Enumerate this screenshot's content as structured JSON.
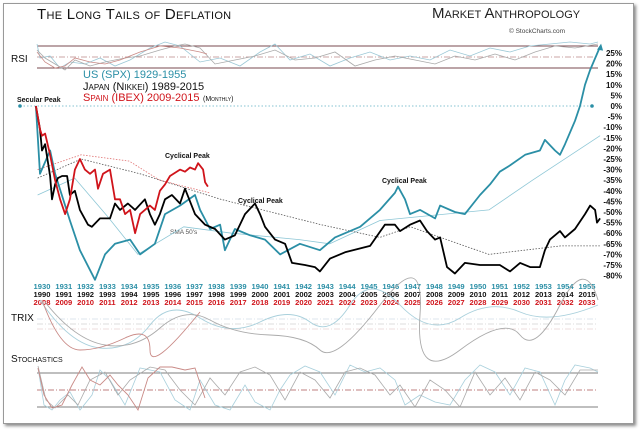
{
  "chart_data": {
    "type": "line",
    "title": "The Long Tails of Deflation",
    "brand": "Market Anthropology",
    "credit": "© StockCharts.com",
    "xlabel": "",
    "ylabel": "",
    "ylim": [
      -80,
      25
    ],
    "y_ticks": [
      "25%",
      "20%",
      "15%",
      "10%",
      "5%",
      "0%",
      "-5%",
      "-10%",
      "-15%",
      "-20%",
      "-25%",
      "-30%",
      "-35%",
      "-40%",
      "-45%",
      "-50%",
      "-55%",
      "-60%",
      "-65%",
      "-70%",
      "-75%",
      "-80%"
    ],
    "x_unit": "years from start of each series",
    "x_axes": {
      "us": [
        "1930",
        "1931",
        "1932",
        "1933",
        "1934",
        "1935",
        "1936",
        "1937",
        "1938",
        "1939",
        "1940",
        "1941",
        "1942",
        "1943",
        "1944",
        "1945",
        "1946",
        "1947",
        "1948",
        "1949",
        "1950",
        "1951",
        "1952",
        "1953",
        "1954",
        "1955"
      ],
      "japan": [
        "1990",
        "1991",
        "1992",
        "1993",
        "1994",
        "1995",
        "1996",
        "1997",
        "1998",
        "1999",
        "2000",
        "2001",
        "2002",
        "2003",
        "2004",
        "2005",
        "2006",
        "2007",
        "2008",
        "2009",
        "2010",
        "2011",
        "2012",
        "2013",
        "2014",
        "2015"
      ],
      "spain": [
        "2008",
        "2009",
        "2010",
        "2011",
        "2012",
        "2013",
        "2014",
        "2015",
        "2016",
        "2017",
        "2018",
        "2019",
        "2020",
        "2021",
        "2022",
        "2023",
        "2024",
        "2025",
        "2026",
        "2027",
        "2028",
        "2029",
        "2030",
        "2031",
        "2032",
        "2033"
      ]
    },
    "legend": {
      "us": "US (SPX) 1929-1955",
      "japan": "Japan (Nikkei) 1989-2015",
      "spain": "Spain (IBEX) 2009-2015",
      "note": "(Monthly)"
    },
    "series": [
      {
        "name": "US (SPX) 1929-1955",
        "color": "#2b8fa6",
        "points": [
          [
            -0.28,
            0
          ],
          [
            -0.09,
            -32
          ],
          [
            0.37,
            -21
          ],
          [
            0.6,
            -32
          ],
          [
            1.28,
            -54
          ],
          [
            1.74,
            -68
          ],
          [
            2.43,
            -82
          ],
          [
            2.89,
            -70
          ],
          [
            3.35,
            -65
          ],
          [
            4.04,
            -63
          ],
          [
            4.5,
            -70
          ],
          [
            5.18,
            -65
          ],
          [
            5.64,
            -51
          ],
          [
            6.33,
            -47
          ],
          [
            7.02,
            -42
          ],
          [
            7.25,
            -49
          ],
          [
            7.71,
            -58
          ],
          [
            8.17,
            -56
          ],
          [
            8.39,
            -68
          ],
          [
            8.85,
            -58
          ],
          [
            9.54,
            -61
          ],
          [
            10.23,
            -63
          ],
          [
            10.92,
            -70
          ],
          [
            11.83,
            -65
          ],
          [
            12.75,
            -68
          ],
          [
            13.44,
            -62
          ],
          [
            14.59,
            -57
          ],
          [
            15.5,
            -49
          ],
          [
            16.19,
            -41
          ],
          [
            16.33,
            -38
          ],
          [
            16.65,
            -44
          ],
          [
            16.88,
            -51
          ],
          [
            17.34,
            -49
          ],
          [
            18.03,
            -53
          ],
          [
            18.26,
            -47
          ],
          [
            18.94,
            -50
          ],
          [
            19.4,
            -51
          ],
          [
            20.09,
            -42
          ],
          [
            20.55,
            -37
          ],
          [
            21.0,
            -31
          ],
          [
            21.47,
            -28
          ],
          [
            22.16,
            -23
          ],
          [
            22.84,
            -21
          ],
          [
            23.07,
            -16
          ],
          [
            23.53,
            -21
          ],
          [
            23.76,
            -23
          ],
          [
            23.99,
            -18
          ],
          [
            24.45,
            -7
          ],
          [
            24.68,
            0
          ],
          [
            24.91,
            10
          ],
          [
            25.14,
            17
          ],
          [
            25.6,
            28
          ]
        ]
      },
      {
        "name": "Japan (Nikkei) 1989-2015",
        "color": "#000000",
        "points": [
          [
            -0.28,
            0
          ],
          [
            -0.09,
            -11
          ],
          [
            0,
            -21
          ],
          [
            0.14,
            -18
          ],
          [
            0.37,
            -33
          ],
          [
            0.46,
            -44
          ],
          [
            0.6,
            -37
          ],
          [
            0.73,
            -34
          ],
          [
            0.92,
            -33
          ],
          [
            1.15,
            -33
          ],
          [
            1.28,
            -42
          ],
          [
            1.51,
            -40
          ],
          [
            1.74,
            -49
          ],
          [
            2.11,
            -56
          ],
          [
            2.29,
            -57
          ],
          [
            2.66,
            -53
          ],
          [
            3.12,
            -53
          ],
          [
            3.35,
            -46
          ],
          [
            3.58,
            -49
          ],
          [
            3.94,
            -46
          ],
          [
            4.27,
            -49
          ],
          [
            4.72,
            -44
          ],
          [
            4.95,
            -51
          ],
          [
            5.18,
            -56
          ],
          [
            5.41,
            -51
          ],
          [
            5.64,
            -44
          ],
          [
            5.96,
            -42
          ],
          [
            6.33,
            -46
          ],
          [
            6.56,
            -39
          ],
          [
            7.02,
            -51
          ],
          [
            7.48,
            -56
          ],
          [
            7.94,
            -58
          ],
          [
            8.39,
            -63
          ],
          [
            8.85,
            -61
          ],
          [
            9.31,
            -51
          ],
          [
            9.77,
            -46
          ],
          [
            10.0,
            -51
          ],
          [
            10.23,
            -57
          ],
          [
            10.69,
            -63
          ],
          [
            11.15,
            -65
          ],
          [
            11.47,
            -74
          ],
          [
            12.06,
            -75
          ],
          [
            12.52,
            -76
          ],
          [
            12.75,
            -78
          ],
          [
            13.21,
            -72
          ],
          [
            13.9,
            -69
          ],
          [
            15.05,
            -66
          ],
          [
            15.73,
            -56
          ],
          [
            16.19,
            -56
          ],
          [
            16.42,
            -59
          ],
          [
            16.88,
            -56
          ],
          [
            17.34,
            -54
          ],
          [
            17.66,
            -59
          ],
          [
            18.03,
            -63
          ],
          [
            18.26,
            -62
          ],
          [
            18.58,
            -76
          ],
          [
            18.94,
            -79
          ],
          [
            19.4,
            -74
          ],
          [
            20.09,
            -75
          ],
          [
            21.0,
            -75
          ],
          [
            21.47,
            -78
          ],
          [
            21.93,
            -74
          ],
          [
            22.39,
            -76
          ],
          [
            22.84,
            -76
          ],
          [
            23.07,
            -68
          ],
          [
            23.3,
            -63
          ],
          [
            23.76,
            -59
          ],
          [
            23.99,
            -62
          ],
          [
            24.45,
            -58
          ],
          [
            24.91,
            -51
          ],
          [
            25.14,
            -47
          ],
          [
            25.37,
            -49
          ],
          [
            25.46,
            -55
          ],
          [
            25.6,
            -53
          ]
        ]
      },
      {
        "name": "Spain (IBEX) 2009-2015",
        "color": "#d0141b",
        "points": [
          [
            -0.28,
            0
          ],
          [
            -0.09,
            -11
          ],
          [
            0,
            -14
          ],
          [
            0.14,
            -13
          ],
          [
            0.37,
            -23
          ],
          [
            0.6,
            -35
          ],
          [
            0.83,
            -44
          ],
          [
            1.06,
            -51
          ],
          [
            1.28,
            -44
          ],
          [
            1.51,
            -30
          ],
          [
            1.74,
            -25
          ],
          [
            1.97,
            -30
          ],
          [
            2.2,
            -32
          ],
          [
            2.43,
            -30
          ],
          [
            2.57,
            -39
          ],
          [
            2.8,
            -32
          ],
          [
            3.12,
            -30
          ],
          [
            3.35,
            -44
          ],
          [
            3.58,
            -44
          ],
          [
            3.81,
            -51
          ],
          [
            4.04,
            -49
          ],
          [
            4.27,
            -60
          ],
          [
            4.5,
            -51
          ],
          [
            4.72,
            -49
          ],
          [
            4.95,
            -47
          ],
          [
            5.18,
            -49
          ],
          [
            5.41,
            -40
          ],
          [
            5.64,
            -37
          ],
          [
            5.87,
            -33
          ],
          [
            6.33,
            -30
          ],
          [
            6.56,
            -31
          ],
          [
            6.79,
            -29
          ],
          [
            7.02,
            -30
          ],
          [
            7.16,
            -27
          ],
          [
            7.39,
            -30
          ],
          [
            7.48,
            -36
          ],
          [
            7.61,
            -38
          ]
        ]
      }
    ],
    "moving_averages": {
      "label": "SMA 50's",
      "us": [
        [
          -0.2,
          -42
        ],
        [
          1.5,
          -34
        ],
        [
          3.0,
          -52
        ],
        [
          4.4,
          -70
        ],
        [
          6.5,
          -57
        ],
        [
          8.7,
          -60
        ],
        [
          11.8,
          -63
        ],
        [
          13.2,
          -65
        ],
        [
          15.5,
          -54
        ],
        [
          20.5,
          -49
        ],
        [
          22.5,
          -35
        ],
        [
          25.6,
          -14
        ]
      ],
      "japan": [
        [
          -0.2,
          -34
        ],
        [
          1.8,
          -25
        ],
        [
          4.5,
          -32
        ],
        [
          8.2,
          -44
        ],
        [
          12.8,
          -56
        ],
        [
          15.5,
          -62
        ],
        [
          16.9,
          -57
        ],
        [
          20.5,
          -70
        ],
        [
          23.8,
          -66
        ],
        [
          25.6,
          -66
        ]
      ],
      "spain": [
        [
          -0.2,
          -30
        ],
        [
          1.8,
          -23
        ],
        [
          4.0,
          -26
        ],
        [
          5.4,
          -35
        ],
        [
          7.7,
          -41
        ]
      ]
    },
    "annotations": [
      "Secular Peak",
      "Cyclical Peak",
      "Cyclical Peak",
      "Cyclical Peak"
    ],
    "indicators": [
      "RSI",
      "TRIX",
      "Stochastics"
    ]
  }
}
